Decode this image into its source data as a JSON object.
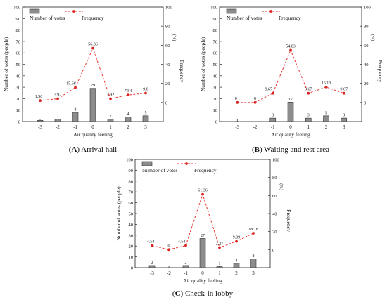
{
  "panels": [
    {
      "caption_letter": "A",
      "caption_text": "Arrival hall",
      "legend": {
        "bar_label": "Number of votes",
        "line_label": "Frequency"
      },
      "chart_data": {
        "type": "bar+line",
        "categories": [
          "-3",
          "-2",
          "-1",
          "0",
          "1",
          "2",
          "3"
        ],
        "series": [
          {
            "name": "Number of votes",
            "type": "bar",
            "axis": "left",
            "values": [
              1,
              2,
              8,
              29,
              2,
              4,
              5
            ],
            "labels": [
              "",
              "2",
              "8",
              "29",
              "2",
              "4",
              "5"
            ]
          },
          {
            "name": "Frequency",
            "type": "line",
            "axis": "right",
            "values": [
              1.96,
              3.92,
              15.68,
              56.86,
              3.92,
              7.84,
              9.8
            ],
            "labels": [
              "1.96",
              "3.92",
              "15.68",
              "56.86",
              "3.92",
              "7.84",
              "9.8"
            ]
          }
        ],
        "xlabel": "Air quality feeling",
        "ylabel": "Number of votes (people)",
        "y2label": "Frequency",
        "y2unit": "(%)",
        "ylim": [
          0,
          100
        ],
        "yticks": [
          0,
          10,
          20,
          30,
          40,
          50,
          60,
          70,
          80,
          90,
          100
        ],
        "y2lim": [
          -20,
          100
        ],
        "y2ticks": [
          0,
          20,
          40,
          60,
          80,
          100
        ]
      }
    },
    {
      "caption_letter": "B",
      "caption_text": "Waiting and rest area",
      "legend": {
        "bar_label": "Number of votes",
        "line_label": "Frequency"
      },
      "chart_data": {
        "type": "bar+line",
        "categories": [
          "-3",
          "-2",
          "-1",
          "0",
          "1",
          "2",
          "3"
        ],
        "series": [
          {
            "name": "Number of votes",
            "type": "bar",
            "axis": "left",
            "values": [
              0,
              0,
              3,
              17,
              3,
              5,
              3
            ],
            "labels": [
              "",
              "",
              "3",
              "17",
              "3",
              "5",
              "3"
            ]
          },
          {
            "name": "Frequency",
            "type": "line",
            "axis": "right",
            "values": [
              0,
              0,
              9.67,
              54.83,
              9.67,
              16.13,
              9.67
            ],
            "labels": [
              "0",
              "0",
              "9.67",
              "54.83",
              "9.67",
              "16.13",
              "9.67"
            ]
          }
        ],
        "xlabel": "Air quality feeling",
        "ylabel": "Number of votes (people)",
        "y2label": "Frequency",
        "y2unit": "(%)",
        "ylim": [
          0,
          100
        ],
        "yticks": [
          0,
          10,
          20,
          30,
          40,
          50,
          60,
          70,
          80,
          90,
          100
        ],
        "y2lim": [
          -20,
          100
        ],
        "y2ticks": [
          0,
          20,
          40,
          60,
          80,
          100
        ]
      }
    },
    {
      "caption_letter": "C",
      "caption_text": "Check-in lobby",
      "legend": {
        "bar_label": "Number of votes",
        "line_label": "Frequency"
      },
      "chart_data": {
        "type": "bar+line",
        "categories": [
          "-3",
          "-2",
          "-1",
          "0",
          "1",
          "2",
          "3"
        ],
        "series": [
          {
            "name": "Number of votes",
            "type": "bar",
            "axis": "left",
            "values": [
              2,
              0,
              2,
              27,
              1,
              4,
              8
            ],
            "labels": [
              "2",
              "",
              "2",
              "27",
              "1",
              "4",
              "8"
            ]
          },
          {
            "name": "Frequency",
            "type": "line",
            "axis": "right",
            "values": [
              4.54,
              0,
              4.54,
              61.36,
              2.27,
              9.09,
              18.18
            ],
            "labels": [
              "4.54",
              "0",
              "4.54",
              "61.36",
              "2.27",
              "9.09",
              "18.18"
            ]
          }
        ],
        "xlabel": "Air quality feeling",
        "ylabel": "Number of votes (people)",
        "y2label": "Frequency",
        "y2unit": "(%)",
        "ylim": [
          0,
          100
        ],
        "yticks": [
          0,
          10,
          20,
          30,
          40,
          50,
          60,
          70,
          80,
          90,
          100
        ],
        "y2lim": [
          -20,
          100
        ],
        "y2ticks": [
          0,
          20,
          40,
          60,
          80,
          100
        ]
      }
    }
  ],
  "colors": {
    "bar_fill": "#8c8c8c",
    "bar_stroke": "#333333",
    "line": "#e8322e",
    "marker": "#d9241f"
  }
}
